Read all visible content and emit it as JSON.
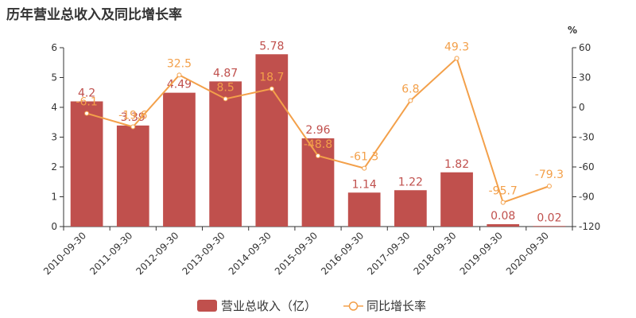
{
  "title": "历年营业总收入及同比增长率",
  "chart_data": {
    "type": "bar",
    "title": "历年营业总收入及同比增长率",
    "categories": [
      "2010-09-30",
      "2011-09-30",
      "2012-09-30",
      "2013-09-30",
      "2014-09-30",
      "2015-09-30",
      "2016-09-30",
      "2017-09-30",
      "2018-09-30",
      "2019-09-30",
      "2020-09-30"
    ],
    "series": [
      {
        "name": "营业总收入（亿）",
        "type": "bar",
        "axis": "left",
        "color": "#c0504d",
        "values": [
          4.2,
          3.39,
          4.49,
          4.87,
          5.78,
          2.96,
          1.14,
          1.22,
          1.82,
          0.08,
          0.02
        ],
        "labels": [
          "4.2",
          "3.39",
          "4.49",
          "4.87",
          "5.78",
          "2.96",
          "1.14",
          "1.22",
          "1.82",
          "0.08",
          "0.02"
        ]
      },
      {
        "name": "同比增长率",
        "type": "line",
        "axis": "right",
        "color": "#f3a04a",
        "values": [
          -6.1,
          -19.6,
          32.5,
          8.5,
          18.7,
          -48.8,
          -61.3,
          6.8,
          49.3,
          -95.7,
          -79.3
        ],
        "labels": [
          "-6.1",
          "-19.6",
          "32.5",
          "8.5",
          "18.7",
          "-48.8",
          "-61.3",
          "6.8",
          "49.3",
          "-95.7",
          "-79.3"
        ]
      }
    ],
    "left_axis": {
      "ylim": [
        0,
        6
      ],
      "ticks": [
        "0",
        "1",
        "2",
        "3",
        "4",
        "5",
        "6"
      ]
    },
    "right_axis": {
      "unit": "%",
      "ylim": [
        -120,
        60
      ],
      "ticks": [
        "-120",
        "-90",
        "-60",
        "-30",
        "0",
        "30",
        "60"
      ]
    },
    "legend_placement": "bottom",
    "grid": false
  }
}
